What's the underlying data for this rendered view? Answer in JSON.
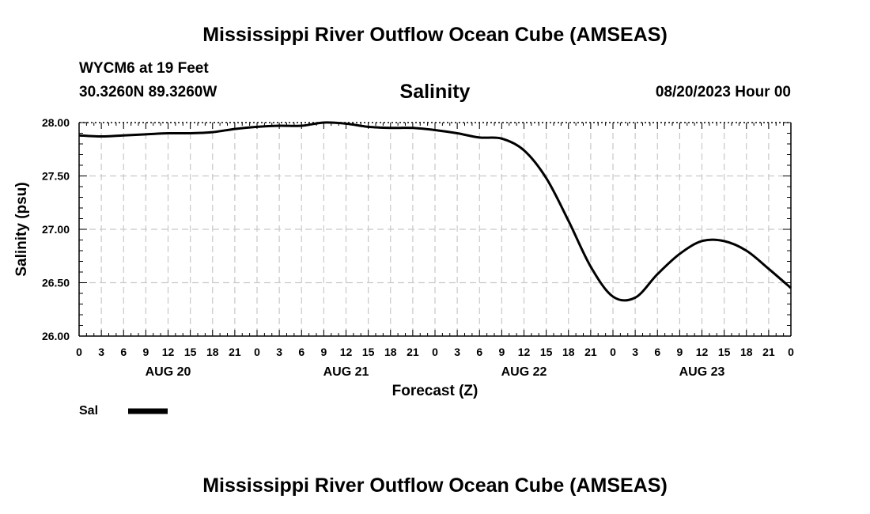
{
  "page": {
    "title_top": "Mississippi River Outflow Ocean Cube (AMSEAS)",
    "title_bottom": "Mississippi River Outflow Ocean Cube (AMSEAS)",
    "station": "WYCM6 at 19 Feet",
    "coords": "30.3260N  89.3260W",
    "datetime": "08/20/2023 Hour 00"
  },
  "chart_data": {
    "type": "line",
    "title": "Salinity",
    "xlabel": "Forecast (Z)",
    "ylabel": "Salinity (psu)",
    "ylim": [
      26.0,
      28.0
    ],
    "xlim_hours": [
      0,
      96
    ],
    "y_ticks": [
      "26.00",
      "26.50",
      "27.00",
      "27.50",
      "28.00"
    ],
    "y_tick_values": [
      26.0,
      26.5,
      27.0,
      27.5,
      28.0
    ],
    "x_tick_labels": [
      "0",
      "3",
      "6",
      "9",
      "12",
      "15",
      "18",
      "21",
      "0",
      "3",
      "6",
      "9",
      "12",
      "15",
      "18",
      "21",
      "0",
      "3",
      "6",
      "9",
      "12",
      "15",
      "18",
      "21",
      "0",
      "3",
      "6",
      "9",
      "12",
      "15",
      "18",
      "21",
      "0"
    ],
    "day_labels": [
      {
        "label": "AUG 20",
        "hour": 12
      },
      {
        "label": "AUG 21",
        "hour": 36
      },
      {
        "label": "AUG 22",
        "hour": 60
      },
      {
        "label": "AUG 23",
        "hour": 84
      }
    ],
    "grid": true,
    "legend": [
      {
        "name": "Sal",
        "color": "#000000"
      }
    ],
    "series": [
      {
        "name": "Sal",
        "color": "#000000",
        "x_hours": [
          0,
          3,
          6,
          9,
          12,
          15,
          18,
          21,
          24,
          27,
          30,
          33,
          36,
          39,
          42,
          45,
          48,
          51,
          54,
          57,
          60,
          63,
          66,
          69,
          72,
          75,
          78,
          81,
          84,
          87,
          90,
          93,
          96
        ],
        "values": [
          27.88,
          27.87,
          27.88,
          27.89,
          27.9,
          27.9,
          27.91,
          27.94,
          27.96,
          27.97,
          27.97,
          28.0,
          27.99,
          27.96,
          27.95,
          27.95,
          27.93,
          27.9,
          27.86,
          27.85,
          27.74,
          27.48,
          27.08,
          26.65,
          26.37,
          26.36,
          26.58,
          26.77,
          26.89,
          26.89,
          26.8,
          26.63,
          26.45
        ]
      }
    ]
  }
}
